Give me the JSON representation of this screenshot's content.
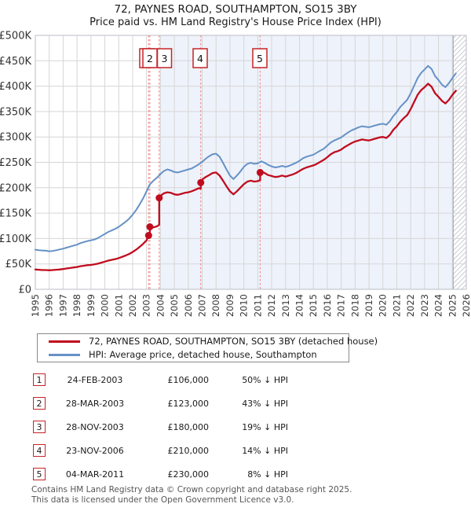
{
  "title": "72, PAYNES ROAD, SOUTHAMPTON, SO15 3BY",
  "subtitle": "Price paid vs. HM Land Registry's House Price Index (HPI)",
  "colors": {
    "property_line": "#c00c1e",
    "hpi_line": "#6591c6",
    "grid": "#d6d6d6",
    "plot_border": "#b9bec6",
    "shade": "#eef2fb",
    "dotted_marker_line": "#f07f7f",
    "marker_box_border": "#c42428",
    "hatch": "#c9ccd4",
    "hatch_edge": "#9aa0a8",
    "axis_text": "#333333"
  },
  "chart_data": {
    "type": "line",
    "title": "72, PAYNES ROAD, SOUTHAMPTON, SO15 3BY",
    "subtitle": "Price paid vs. HM Land Registry's House Price Index (HPI)",
    "units": "GBP thousands",
    "x_axis": {
      "start": 1995,
      "end": 2026,
      "tick_interval": 1
    },
    "y_axis": {
      "min": 0,
      "max": 500,
      "ticks": [
        {
          "value": 0,
          "label": "£0"
        },
        {
          "value": 50,
          "label": "£50K"
        },
        {
          "value": 100,
          "label": "£100K"
        },
        {
          "value": 150,
          "label": "£150K"
        },
        {
          "value": 200,
          "label": "£200K"
        },
        {
          "value": 250,
          "label": "£250K"
        },
        {
          "value": 300,
          "label": "£300K"
        },
        {
          "value": 350,
          "label": "£350K"
        },
        {
          "value": 400,
          "label": "£400K"
        },
        {
          "value": 450,
          "label": "£450K"
        },
        {
          "value": 500,
          "label": "£500K"
        }
      ]
    },
    "shaded_region": {
      "from": 2003.91,
      "to": 2025.05
    },
    "hatch_region": {
      "from": 2025.05,
      "to": 2026
    },
    "legend_position": "bottom",
    "grid": true,
    "markers": [
      {
        "label": "1",
        "x": 2003.15,
        "value": 106,
        "box_x": 187
      },
      {
        "label": "2",
        "x": 2003.24,
        "value": 123,
        "box_x": 191
      },
      {
        "label": "3",
        "x": 2003.91,
        "value": 180,
        "box_x": 209.5
      },
      {
        "label": "4",
        "x": 2006.9,
        "value": 210,
        "box_x": 255
      },
      {
        "label": "5",
        "x": 2011.17,
        "value": 230,
        "box_x": 331
      }
    ],
    "series": [
      {
        "name": "HPI: Average price, detached house, Southampton",
        "color": "#6591c6",
        "points": [
          [
            1995,
            78
          ],
          [
            1995.25,
            77
          ],
          [
            1995.5,
            76.5
          ],
          [
            1995.75,
            76
          ],
          [
            1996,
            75
          ],
          [
            1996.25,
            75.5
          ],
          [
            1996.5,
            77
          ],
          [
            1996.75,
            78.5
          ],
          [
            1997,
            80
          ],
          [
            1997.25,
            82
          ],
          [
            1997.5,
            84
          ],
          [
            1997.75,
            86
          ],
          [
            1998,
            88
          ],
          [
            1998.25,
            91
          ],
          [
            1998.5,
            93
          ],
          [
            1998.75,
            95
          ],
          [
            1999,
            96.5
          ],
          [
            1999.25,
            98
          ],
          [
            1999.5,
            101
          ],
          [
            1999.75,
            105
          ],
          [
            2000,
            109
          ],
          [
            2000.25,
            113
          ],
          [
            2000.5,
            116
          ],
          [
            2000.75,
            119
          ],
          [
            2001,
            123
          ],
          [
            2001.25,
            128
          ],
          [
            2001.5,
            133
          ],
          [
            2001.75,
            139
          ],
          [
            2002,
            147
          ],
          [
            2002.25,
            156
          ],
          [
            2002.5,
            167
          ],
          [
            2002.75,
            179
          ],
          [
            2003,
            193
          ],
          [
            2003.25,
            207
          ],
          [
            2003.5,
            214
          ],
          [
            2003.75,
            220
          ],
          [
            2004,
            227
          ],
          [
            2004.25,
            233
          ],
          [
            2004.5,
            236
          ],
          [
            2004.75,
            234
          ],
          [
            2005,
            231
          ],
          [
            2005.25,
            230
          ],
          [
            2005.5,
            232
          ],
          [
            2005.75,
            234
          ],
          [
            2006,
            236
          ],
          [
            2006.25,
            238
          ],
          [
            2006.5,
            242
          ],
          [
            2006.75,
            246
          ],
          [
            2007,
            251
          ],
          [
            2007.25,
            257
          ],
          [
            2007.5,
            262
          ],
          [
            2007.75,
            266
          ],
          [
            2008,
            267
          ],
          [
            2008.25,
            261
          ],
          [
            2008.5,
            249
          ],
          [
            2008.75,
            236
          ],
          [
            2009,
            224
          ],
          [
            2009.25,
            217
          ],
          [
            2009.5,
            224
          ],
          [
            2009.75,
            232
          ],
          [
            2010,
            241
          ],
          [
            2010.25,
            247
          ],
          [
            2010.5,
            249
          ],
          [
            2010.75,
            247
          ],
          [
            2011,
            248
          ],
          [
            2011.25,
            252
          ],
          [
            2011.5,
            249
          ],
          [
            2011.75,
            245
          ],
          [
            2012,
            242
          ],
          [
            2012.25,
            240
          ],
          [
            2012.5,
            241
          ],
          [
            2012.75,
            243
          ],
          [
            2013,
            241
          ],
          [
            2013.25,
            243
          ],
          [
            2013.5,
            246
          ],
          [
            2013.75,
            249
          ],
          [
            2014,
            253
          ],
          [
            2014.25,
            258
          ],
          [
            2014.5,
            261
          ],
          [
            2014.75,
            263
          ],
          [
            2015,
            265
          ],
          [
            2015.25,
            269
          ],
          [
            2015.5,
            273
          ],
          [
            2015.75,
            277
          ],
          [
            2016,
            283
          ],
          [
            2016.25,
            289
          ],
          [
            2016.5,
            293
          ],
          [
            2016.75,
            296
          ],
          [
            2017,
            299
          ],
          [
            2017.25,
            304
          ],
          [
            2017.5,
            309
          ],
          [
            2017.75,
            313
          ],
          [
            2018,
            316
          ],
          [
            2018.25,
            319
          ],
          [
            2018.5,
            321
          ],
          [
            2018.75,
            320
          ],
          [
            2019,
            319
          ],
          [
            2019.25,
            321
          ],
          [
            2019.5,
            323
          ],
          [
            2019.75,
            325
          ],
          [
            2020,
            326
          ],
          [
            2020.25,
            324
          ],
          [
            2020.5,
            331
          ],
          [
            2020.75,
            341
          ],
          [
            2021,
            349
          ],
          [
            2021.25,
            359
          ],
          [
            2021.5,
            366
          ],
          [
            2021.75,
            373
          ],
          [
            2022,
            386
          ],
          [
            2022.25,
            401
          ],
          [
            2022.5,
            416
          ],
          [
            2022.75,
            426
          ],
          [
            2023,
            433
          ],
          [
            2023.25,
            440
          ],
          [
            2023.5,
            434
          ],
          [
            2023.75,
            420
          ],
          [
            2024,
            412
          ],
          [
            2024.25,
            403
          ],
          [
            2024.5,
            398
          ],
          [
            2024.75,
            406
          ],
          [
            2025,
            416
          ],
          [
            2025.25,
            425
          ]
        ]
      },
      {
        "name": "72, PAYNES ROAD, SOUTHAMPTON, SO15 3BY (detached house)",
        "color": "#c00c1e",
        "points": [
          [
            1995,
            39
          ],
          [
            1995.25,
            38.5
          ],
          [
            1995.5,
            38
          ],
          [
            1995.75,
            38
          ],
          [
            1996,
            37.5
          ],
          [
            1996.25,
            38
          ],
          [
            1996.5,
            38.5
          ],
          [
            1996.75,
            39
          ],
          [
            1997,
            40
          ],
          [
            1997.25,
            41
          ],
          [
            1997.5,
            42
          ],
          [
            1997.75,
            43
          ],
          [
            1998,
            44
          ],
          [
            1998.25,
            45.5
          ],
          [
            1998.5,
            46.5
          ],
          [
            1998.75,
            47.5
          ],
          [
            1999,
            48
          ],
          [
            1999.25,
            49
          ],
          [
            1999.5,
            50.5
          ],
          [
            1999.75,
            52.5
          ],
          [
            2000,
            54.5
          ],
          [
            2000.25,
            56.5
          ],
          [
            2000.5,
            58
          ],
          [
            2000.75,
            59.5
          ],
          [
            2001,
            61.5
          ],
          [
            2001.25,
            64
          ],
          [
            2001.5,
            66.5
          ],
          [
            2001.75,
            69.5
          ],
          [
            2002,
            73.5
          ],
          [
            2002.25,
            78
          ],
          [
            2002.5,
            83.5
          ],
          [
            2002.75,
            89.5
          ],
          [
            2003,
            96.5
          ],
          [
            2003.15,
            106
          ],
          [
            2003.24,
            107
          ],
          [
            2003.24,
            123
          ],
          [
            2003.5,
            122
          ],
          [
            2003.75,
            124
          ],
          [
            2003.91,
            127
          ],
          [
            2003.91,
            180
          ],
          [
            2004,
            184
          ],
          [
            2004.25,
            189
          ],
          [
            2004.5,
            191
          ],
          [
            2004.75,
            190
          ],
          [
            2005,
            187
          ],
          [
            2005.25,
            186
          ],
          [
            2005.5,
            188
          ],
          [
            2005.75,
            190
          ],
          [
            2006,
            191
          ],
          [
            2006.25,
            193
          ],
          [
            2006.5,
            196
          ],
          [
            2006.75,
            199
          ],
          [
            2006.9,
            198
          ],
          [
            2006.9,
            210
          ],
          [
            2007,
            216
          ],
          [
            2007.25,
            221
          ],
          [
            2007.5,
            225
          ],
          [
            2007.75,
            229
          ],
          [
            2008,
            230
          ],
          [
            2008.25,
            224
          ],
          [
            2008.5,
            214
          ],
          [
            2008.75,
            203
          ],
          [
            2009,
            193
          ],
          [
            2009.25,
            187
          ],
          [
            2009.5,
            193
          ],
          [
            2009.75,
            200
          ],
          [
            2010,
            207
          ],
          [
            2010.25,
            212
          ],
          [
            2010.5,
            214
          ],
          [
            2010.75,
            212
          ],
          [
            2011,
            213
          ],
          [
            2011.17,
            215
          ],
          [
            2011.17,
            230
          ],
          [
            2011.25,
            232
          ],
          [
            2011.5,
            229
          ],
          [
            2011.75,
            225
          ],
          [
            2012,
            223
          ],
          [
            2012.25,
            221
          ],
          [
            2012.5,
            222
          ],
          [
            2012.75,
            224
          ],
          [
            2013,
            222
          ],
          [
            2013.25,
            224
          ],
          [
            2013.5,
            226
          ],
          [
            2013.75,
            229
          ],
          [
            2014,
            233
          ],
          [
            2014.25,
            237
          ],
          [
            2014.5,
            240
          ],
          [
            2014.75,
            242
          ],
          [
            2015,
            244
          ],
          [
            2015.25,
            247
          ],
          [
            2015.5,
            251
          ],
          [
            2015.75,
            255
          ],
          [
            2016,
            260
          ],
          [
            2016.25,
            266
          ],
          [
            2016.5,
            270
          ],
          [
            2016.75,
            272
          ],
          [
            2017,
            275
          ],
          [
            2017.25,
            280
          ],
          [
            2017.5,
            284
          ],
          [
            2017.75,
            288
          ],
          [
            2018,
            291
          ],
          [
            2018.25,
            293
          ],
          [
            2018.5,
            295
          ],
          [
            2018.75,
            294
          ],
          [
            2019,
            293
          ],
          [
            2019.25,
            295
          ],
          [
            2019.5,
            297
          ],
          [
            2019.75,
            299
          ],
          [
            2020,
            300
          ],
          [
            2020.25,
            298
          ],
          [
            2020.5,
            304
          ],
          [
            2020.75,
            314
          ],
          [
            2021,
            321
          ],
          [
            2021.25,
            330
          ],
          [
            2021.5,
            337
          ],
          [
            2021.75,
            343
          ],
          [
            2022,
            355
          ],
          [
            2022.25,
            369
          ],
          [
            2022.5,
            383
          ],
          [
            2022.75,
            392
          ],
          [
            2023,
            398
          ],
          [
            2023.25,
            405
          ],
          [
            2023.5,
            399
          ],
          [
            2023.75,
            386
          ],
          [
            2024,
            379
          ],
          [
            2024.25,
            371
          ],
          [
            2024.5,
            366
          ],
          [
            2024.75,
            373
          ],
          [
            2025,
            383
          ],
          [
            2025.25,
            391
          ]
        ]
      }
    ]
  },
  "legend": {
    "items": [
      {
        "label": "72, PAYNES ROAD, SOUTHAMPTON, SO15 3BY (detached house)",
        "color": "#c00c1e"
      },
      {
        "label": "HPI: Average price, detached house, Southampton",
        "color": "#6591c6"
      }
    ]
  },
  "transactions": [
    {
      "num": "1",
      "date": "24-FEB-2003",
      "price": "£106,000",
      "change": "50% ↓ HPI"
    },
    {
      "num": "2",
      "date": "28-MAR-2003",
      "price": "£123,000",
      "change": "43% ↓ HPI"
    },
    {
      "num": "3",
      "date": "28-NOV-2003",
      "price": "£180,000",
      "change": "19% ↓ HPI"
    },
    {
      "num": "4",
      "date": "23-NOV-2006",
      "price": "£210,000",
      "change": "14% ↓ HPI"
    },
    {
      "num": "5",
      "date": "04-MAR-2011",
      "price": "£230,000",
      "change": "8% ↓ HPI"
    }
  ],
  "footer": {
    "line1": "Contains HM Land Registry data © Crown copyright and database right 2025.",
    "line2": "This data is licensed under the Open Government Licence v3.0."
  }
}
